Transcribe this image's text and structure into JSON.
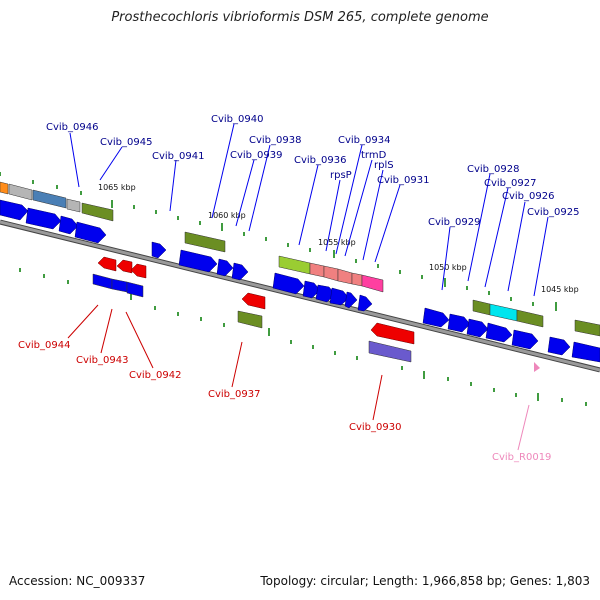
{
  "title": "Prosthecochloris vibrioformis DSM 265, complete genome",
  "footer": {
    "accession": "Accession: NC_009337",
    "stats": "Topology: circular; Length: 1,966,858 bp; Genes: 1,803"
  },
  "colors": {
    "backbone": "#808080",
    "forward_cds": "#0000ee",
    "reverse_cds": "#ee0000",
    "forward_label": "#00008b",
    "reverse_label": "#cc0000",
    "rrna_label": "#ee88bb",
    "olive_cog": "#6b8e23",
    "tick": "#007a00"
  },
  "tick_labels": [
    "1065 kbp",
    "1060 kbp",
    "1055 kbp",
    "1050 kbp",
    "1045 kbp"
  ],
  "gene_labels": [
    {
      "text": "Cvib_0946",
      "strand": "forward"
    },
    {
      "text": "Cvib_0945",
      "strand": "forward"
    },
    {
      "text": "Cvib_0941",
      "strand": "forward"
    },
    {
      "text": "Cvib_0940",
      "strand": "forward"
    },
    {
      "text": "Cvib_0938",
      "strand": "forward"
    },
    {
      "text": "Cvib_0939",
      "strand": "forward"
    },
    {
      "text": "Cvib_0936",
      "strand": "forward"
    },
    {
      "text": "Cvib_0934",
      "strand": "forward"
    },
    {
      "text": "trmD",
      "strand": "forward"
    },
    {
      "text": "rpsP",
      "strand": "forward"
    },
    {
      "text": "rplS",
      "strand": "forward"
    },
    {
      "text": "Cvib_0931",
      "strand": "forward"
    },
    {
      "text": "Cvib_0928",
      "strand": "forward"
    },
    {
      "text": "Cvib_0927",
      "strand": "forward"
    },
    {
      "text": "Cvib_0926",
      "strand": "forward"
    },
    {
      "text": "Cvib_0929",
      "strand": "forward"
    },
    {
      "text": "Cvib_0925",
      "strand": "forward"
    },
    {
      "text": "Cvib_0944",
      "strand": "reverse"
    },
    {
      "text": "Cvib_0943",
      "strand": "reverse"
    },
    {
      "text": "Cvib_0942",
      "strand": "reverse"
    },
    {
      "text": "Cvib_0937",
      "strand": "reverse"
    },
    {
      "text": "Cvib_0930",
      "strand": "reverse"
    },
    {
      "text": "Cvib_R0019",
      "strand": "rrna"
    }
  ]
}
